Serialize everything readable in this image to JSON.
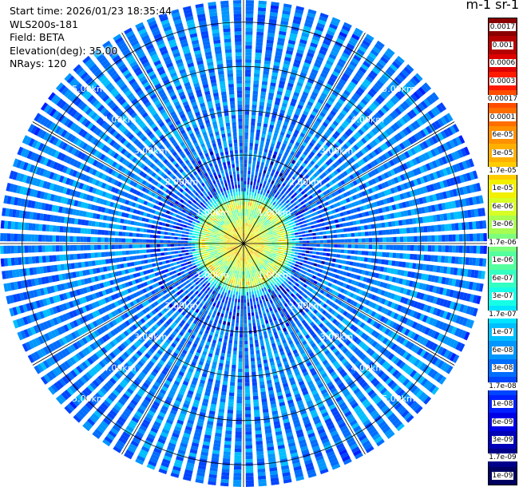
{
  "info": {
    "start_time": "Start time: 2026/01/23 18:35:44",
    "instrument": "WLS200s-181",
    "field": "Field: BETA",
    "elevation": "Elevation(deg): 35.00",
    "nrays": "NRays: 120"
  },
  "colorbar": {
    "unit_label": "m-1 sr-1",
    "labels": [
      "0.0017",
      "0.001",
      "0.0006",
      "0.0003",
      "0.00017",
      "0.0001",
      "6e-05",
      "3e-05",
      "1.7e-05",
      "1e-05",
      "6e-06",
      "3e-06",
      "1.7e-06",
      "1e-06",
      "6e-07",
      "3e-07",
      "1.7e-07",
      "1e-07",
      "6e-08",
      "3e-08",
      "1.7e-08",
      "1e-08",
      "6e-09",
      "3e-09",
      "1.7e-09",
      "1e-09"
    ],
    "colors": [
      "#8a0000",
      "#b50000",
      "#de0000",
      "#ff1a00",
      "#ff4d00",
      "#ff6e00",
      "#ff9000",
      "#ffaf00",
      "#ffcc00",
      "#f2f000",
      "#d7ff26",
      "#a8ff52",
      "#7cff7c",
      "#55ff9e",
      "#34ffc2",
      "#16ffe6",
      "#00e4ff",
      "#00bfff",
      "#0096ff",
      "#006dff",
      "#0045ff",
      "#001fff",
      "#0000e6",
      "#0000b8",
      "#00008b",
      "#000060"
    ]
  },
  "chart_data": {
    "type": "heatmap",
    "subtype": "ppi-polar",
    "title": "",
    "field": "BETA",
    "units": "m-1 sr-1",
    "elevation_deg": 35.0,
    "n_rays": 120,
    "max_range_km": 5.5,
    "range_rings_km": [
      1.0,
      2.0,
      3.0,
      4.0,
      5.0
    ],
    "range_ring_labels": [
      "1.00km",
      "2.00km",
      "3.00km",
      "4.00km",
      "5.00km"
    ],
    "spoke_angles_deg": [
      0,
      30,
      60,
      90,
      120,
      150,
      180,
      210,
      240,
      270,
      300,
      330
    ],
    "colorbar_levels": [
      0.0017,
      0.001,
      0.0006,
      0.0003,
      0.00017,
      0.0001,
      6e-05,
      3e-05,
      1.7e-05,
      1e-05,
      6e-06,
      3e-06,
      1.7e-06,
      1e-06,
      6e-07,
      3e-07,
      1.7e-07,
      1e-07,
      6e-08,
      3e-08,
      1.7e-08,
      1e-08,
      6e-09,
      3e-09,
      1.7e-09,
      1e-09
    ],
    "radial_profile": [
      {
        "range_km": 0.4,
        "beta": 1.5e-05
      },
      {
        "range_km": 0.7,
        "beta": 1.7e-06
      },
      {
        "range_km": 0.9,
        "beta": 8e-06
      },
      {
        "range_km": 1.3,
        "beta": 3e-08
      },
      {
        "range_km": 2.0,
        "beta": 5e-08
      },
      {
        "range_km": 3.0,
        "beta": 6e-08
      },
      {
        "range_km": 4.0,
        "beta": 6e-08
      },
      {
        "range_km": 5.0,
        "beta": 5e-08
      },
      {
        "range_km": 5.5,
        "beta": 4e-08
      }
    ]
  }
}
